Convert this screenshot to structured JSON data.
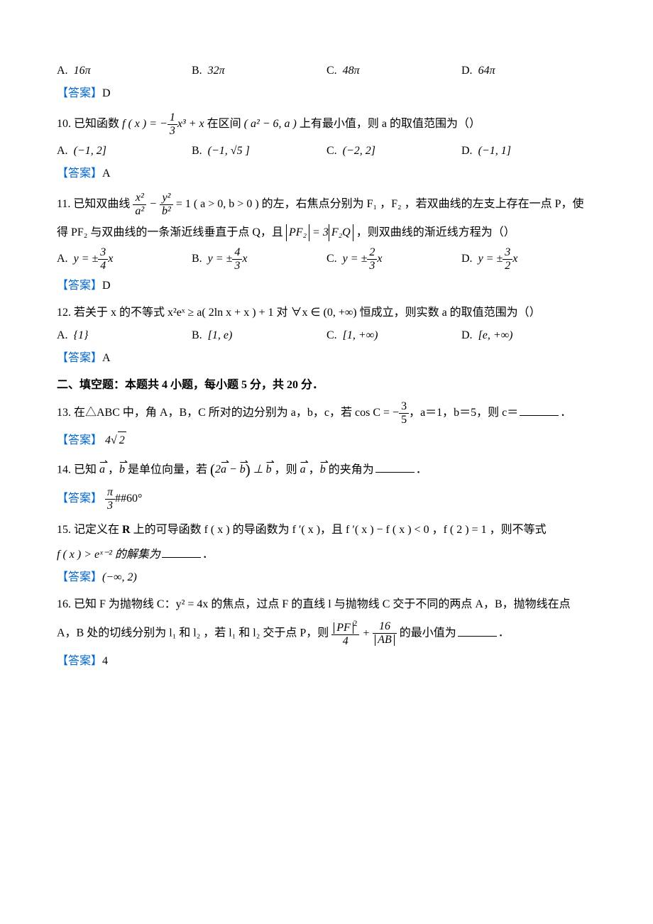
{
  "q9": {
    "options": {
      "A": "16π",
      "B": "32π",
      "C": "48π",
      "D": "64π"
    },
    "answer_label": "【答案】",
    "answer": "D"
  },
  "q10": {
    "num": "10. ",
    "stem_a": "已知函数 ",
    "stem_b": " 在区间 ",
    "stem_c": " 上有最小值，则 a 的取值范围为（）",
    "f_lhs": "f ( x ) = −",
    "frac_num": "1",
    "frac_den": "3",
    "f_rhs": "x³ + x",
    "interval": "( a² − 6, a )",
    "opt_A_lbl": "A.",
    "opt_A": "(−1, 2]",
    "opt_B_lbl": "B.",
    "opt_B": "(−1, √5 ]",
    "opt_C_lbl": "C.",
    "opt_C": "(−2, 2]",
    "opt_D_lbl": "D.",
    "opt_D": "(−1, 1]",
    "answer_label": "【答案】",
    "answer": "A"
  },
  "q11": {
    "num": "11. ",
    "stem_a": "已知双曲线 ",
    "frac1_num": "x²",
    "frac1_den": "a²",
    "minus": " − ",
    "frac2_num": "y²",
    "frac2_den": "b²",
    "eq": " = 1 ( a > 0, b > 0 ) 的左，右焦点分别为 F₁ ，F₂ ，若双曲线的左支上存在一点 P，使",
    "stem_b1": "得 PF₂ 与双曲线的一条渐近线垂直于点 Q，且 ",
    "abs1": "PF₂",
    "eq2": " = 3",
    "abs2": "F₂Q",
    "stem_b2": " ，则双曲线的渐近线方程为（）",
    "opt_A_lbl": "A.",
    "optA_pre": "y = ±",
    "optA_num": "3",
    "optA_den": "4",
    "optA_post": "x",
    "opt_B_lbl": "B.",
    "optB_pre": "y = ±",
    "optB_num": "4",
    "optB_den": "3",
    "optB_post": "x",
    "opt_C_lbl": "C.",
    "optC_pre": "y = ±",
    "optC_num": "2",
    "optC_den": "3",
    "optC_post": "x",
    "opt_D_lbl": "D.",
    "optD_pre": "y = ±",
    "optD_num": "3",
    "optD_den": "2",
    "optD_post": "x",
    "answer_label": "【答案】",
    "answer": "D"
  },
  "q12": {
    "num": "12. ",
    "stem": "若关于 x 的不等式 x²eˣ ≥ a( 2ln x + x ) + 1 对 ∀x ∈ (0, +∞) 恒成立，则实数 a 的取值范围为（）",
    "opt_A_lbl": "A.",
    "opt_A": "{1}",
    "opt_B_lbl": "B.",
    "opt_B": "[1, e)",
    "opt_C_lbl": "C.",
    "opt_C": "[1, +∞)",
    "opt_D_lbl": "D.",
    "opt_D": "[e, +∞)",
    "answer_label": "【答案】",
    "answer": "A"
  },
  "section2_title": "二、填空题：本题共 4 小题，每小题 5 分，共 20 分．",
  "q13": {
    "num": "13. ",
    "stem_a": "在△ABC 中，角 A，B，C 所对的边分别为 a，b，c，若 cos C = −",
    "frac_num": "3",
    "frac_den": "5",
    "stem_b": "，a＝1，b＝5，则 c＝",
    "period": "．",
    "answer_label": "【答案】",
    "ans_pre": "4",
    "ans_rad": "2"
  },
  "q14": {
    "num": "14. ",
    "stem_a": "已知 ",
    "vec_a1": "a",
    "comma1": " ，",
    "vec_b1": "b",
    "stem_b": " 是单位向量，若 ",
    "paren_open": "(",
    "two": "2",
    "vec_a2": "a",
    "minus": " − ",
    "vec_b2": "b",
    "paren_close": ")",
    "perp": " ⊥ ",
    "vec_b3": "b",
    "stem_c": " ，则 ",
    "vec_a3": "a",
    "comma2": " ，",
    "vec_b4": "b",
    "stem_d": " 的夹角为",
    "period": "．",
    "answer_label": "【答案】",
    "ans_num": "π",
    "ans_den": "3",
    "ans_tail": "##60°"
  },
  "q15": {
    "num": "15. ",
    "stem_a": "记定义在 ",
    "R": "R",
    "stem_a2": " 上的可导函数 f ( x ) 的导函数为 f ′( x )，且 f ′( x ) − f ( x ) < 0 ，f ( 2 ) = 1 ，则不等式",
    "stem_b": "f ( x ) > eˣ⁻² 的解集为",
    "period": "．",
    "answer_label": "【答案】",
    "answer": "(−∞, 2)"
  },
  "q16": {
    "num": "16. ",
    "stem_a": "已知 F 为抛物线 C：y² = 4x 的焦点，过点 F 的直线 l 与抛物线 C 交于不同的两点 A，B，抛物线在点",
    "stem_b1": "A，B 处的切线分别为 l₁ 和 l₂ ，若 l₁ 和 l₂ 交于点 P，则 ",
    "f1_num_abs": "PF",
    "f1_num_sup": "2",
    "f1_den": "4",
    "plus": " + ",
    "f2_num": "16",
    "f2_den_abs": "AB",
    "stem_b2": " 的最小值为",
    "period": "．",
    "answer_label": "【答案】",
    "answer": "4"
  }
}
